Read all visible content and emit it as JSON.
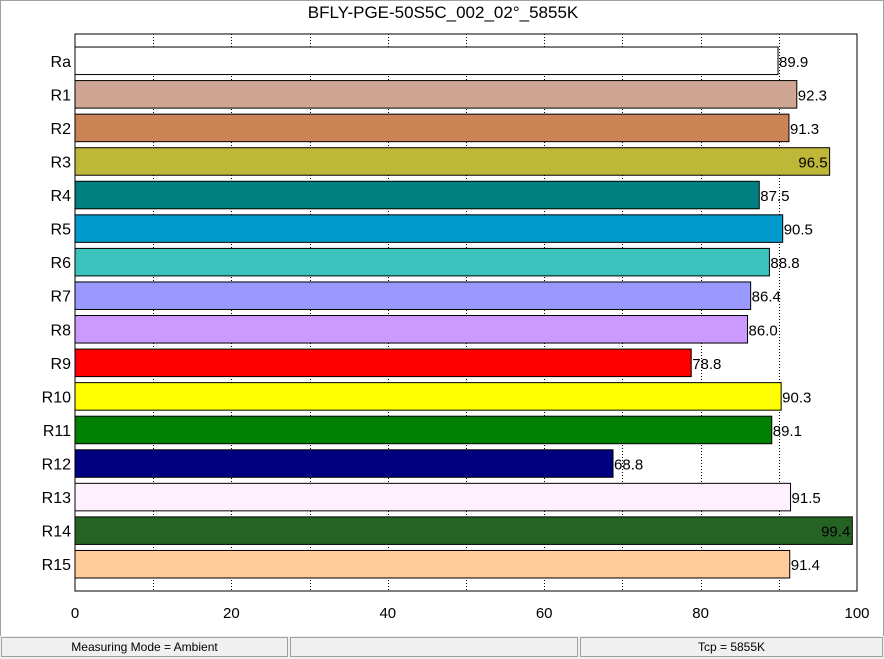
{
  "window": {
    "title": "BFLY-PGE-50S5C_002_02°_5855K"
  },
  "chart_data": {
    "type": "bar",
    "orientation": "horizontal",
    "title": "BFLY-PGE-50S5C_002_02°_5855K",
    "xlabel": "",
    "ylabel": "",
    "xlim": [
      0,
      100
    ],
    "x_ticks": [
      0,
      20,
      40,
      60,
      80,
      100
    ],
    "grid": "vertical dotted every 10",
    "categories": [
      "Ra",
      "R1",
      "R2",
      "R3",
      "R4",
      "R5",
      "R6",
      "R7",
      "R8",
      "R9",
      "R10",
      "R11",
      "R12",
      "R13",
      "R14",
      "R15"
    ],
    "values": [
      89.9,
      92.3,
      91.3,
      96.5,
      87.5,
      90.5,
      88.8,
      86.4,
      86.0,
      78.8,
      90.3,
      89.1,
      68.8,
      91.5,
      99.4,
      91.4
    ],
    "value_labels": [
      "89.9",
      "92.3",
      "91.3",
      "96.5",
      "87.5",
      "90.5",
      "88.8",
      "86.4",
      "86.0",
      "78.8",
      "90.3",
      "89.1",
      "68.8",
      "91.5",
      "99.4",
      "91.4"
    ],
    "colors": [
      "#ffffff",
      "#cfa693",
      "#cc8356",
      "#bfb737",
      "#00807e",
      "#009acb",
      "#3dc3bd",
      "#9999ff",
      "#cc99ff",
      "#ff0000",
      "#ffff00",
      "#008000",
      "#000080",
      "#fff0ff",
      "#246324",
      "#ffcc99"
    ]
  },
  "statusbar": {
    "mode": "Measuring Mode = Ambient",
    "middle": "",
    "tcp": "Tcp = 5855K"
  }
}
